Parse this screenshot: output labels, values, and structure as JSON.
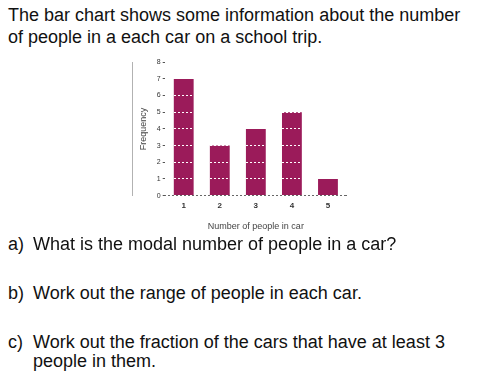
{
  "intro": [
    "The bar chart shows some information about the number",
    "of people in a each car on a school trip."
  ],
  "chart_data": {
    "type": "bar",
    "x_label": "Number of people in car",
    "y_label": "Frequency",
    "categories": [
      "1",
      "2",
      "3",
      "4",
      "5"
    ],
    "values": [
      7,
      3,
      4,
      5,
      1
    ],
    "color": "#9b1b5a",
    "ylim": [
      0,
      8
    ],
    "yticks": [
      0,
      1,
      2,
      3,
      4,
      5,
      6,
      7,
      8
    ],
    "grid": true
  },
  "questions": [
    {
      "label": "a)",
      "lines": [
        "What is the modal number of people in a car?"
      ]
    },
    {
      "label": "b)",
      "lines": [
        "Work out the range of people in each car."
      ]
    },
    {
      "label": "c)",
      "lines": [
        "Work out the fraction of the cars that have at least 3",
        "people in them."
      ]
    }
  ]
}
